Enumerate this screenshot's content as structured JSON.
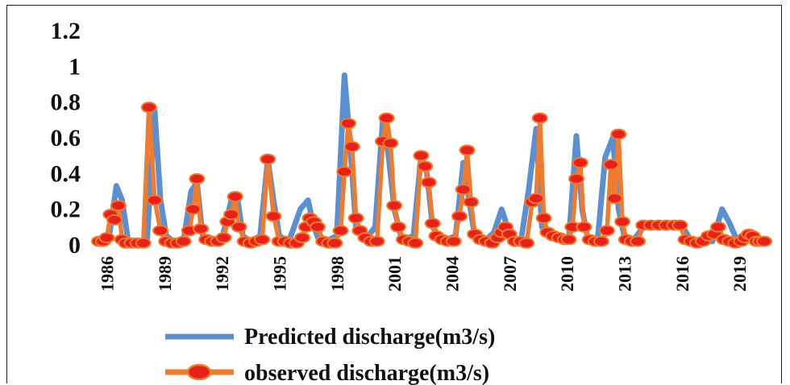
{
  "chart_data": {
    "type": "line",
    "title": "",
    "xlabel": "",
    "ylabel": "",
    "ylim": [
      0,
      1.2
    ],
    "yticks": [
      "0",
      "0.2",
      "0.4",
      "0.6",
      "0.8",
      "1",
      "1.2"
    ],
    "xticks": [
      "1986",
      "1989",
      "1992",
      "1995",
      "1998",
      "2001",
      "2004",
      "2007",
      "2010",
      "2013",
      "2016",
      "2019"
    ],
    "x_range": [
      1985.6,
      2020.3
    ],
    "grid": false,
    "legend_position": "bottom",
    "series": [
      {
        "name": "Predicted discharge(m3/s)",
        "color": "#5b8fd1",
        "marker": "none",
        "points": [
          [
            1985.6,
            0.02
          ],
          [
            1986.1,
            0.03
          ],
          [
            1986.5,
            0.33
          ],
          [
            1986.8,
            0.25
          ],
          [
            1987.1,
            0.03
          ],
          [
            1987.6,
            0.01
          ],
          [
            1988.1,
            0.02
          ],
          [
            1988.5,
            0.75
          ],
          [
            1988.8,
            0.25
          ],
          [
            1989.1,
            0.05
          ],
          [
            1989.5,
            0.02
          ],
          [
            1990.0,
            0.02
          ],
          [
            1990.4,
            0.3
          ],
          [
            1990.7,
            0.35
          ],
          [
            1991.0,
            0.05
          ],
          [
            1991.5,
            0.02
          ],
          [
            1992.0,
            0.03
          ],
          [
            1992.5,
            0.25
          ],
          [
            1992.8,
            0.27
          ],
          [
            1993.1,
            0.05
          ],
          [
            1993.5,
            0.02
          ],
          [
            1994.0,
            0.05
          ],
          [
            1994.4,
            0.48
          ],
          [
            1994.7,
            0.25
          ],
          [
            1995.0,
            0.05
          ],
          [
            1995.5,
            0.02
          ],
          [
            1996.1,
            0.2
          ],
          [
            1996.5,
            0.25
          ],
          [
            1996.8,
            0.1
          ],
          [
            1997.1,
            0.02
          ],
          [
            1997.6,
            0.03
          ],
          [
            1998.0,
            0.05
          ],
          [
            1998.4,
            0.95
          ],
          [
            1998.7,
            0.55
          ],
          [
            1999.0,
            0.1
          ],
          [
            1999.5,
            0.03
          ],
          [
            2000.0,
            0.1
          ],
          [
            2000.4,
            0.7
          ],
          [
            2000.7,
            0.5
          ],
          [
            2001.0,
            0.2
          ],
          [
            2001.4,
            0.03
          ],
          [
            2002.0,
            0.05
          ],
          [
            2002.4,
            0.5
          ],
          [
            2002.7,
            0.4
          ],
          [
            2003.0,
            0.1
          ],
          [
            2003.5,
            0.02
          ],
          [
            2004.2,
            0.05
          ],
          [
            2004.6,
            0.46
          ],
          [
            2004.9,
            0.25
          ],
          [
            2005.2,
            0.05
          ],
          [
            2005.7,
            0.02
          ],
          [
            2006.2,
            0.07
          ],
          [
            2006.6,
            0.2
          ],
          [
            2006.9,
            0.1
          ],
          [
            2007.2,
            0.03
          ],
          [
            2007.6,
            0.02
          ],
          [
            2008.0,
            0.3
          ],
          [
            2008.4,
            0.65
          ],
          [
            2008.7,
            0.1
          ],
          [
            2009.1,
            0.05
          ],
          [
            2009.6,
            0.03
          ],
          [
            2010.1,
            0.02
          ],
          [
            2010.5,
            0.61
          ],
          [
            2010.8,
            0.2
          ],
          [
            2011.1,
            0.03
          ],
          [
            2011.6,
            0.02
          ],
          [
            2012.0,
            0.49
          ],
          [
            2012.4,
            0.6
          ],
          [
            2012.7,
            0.2
          ],
          [
            2013.0,
            0.05
          ],
          [
            2013.5,
            0.03
          ],
          [
            2014.0,
            0.1
          ],
          [
            2014.5,
            0.11
          ],
          [
            2015.0,
            0.1
          ],
          [
            2015.5,
            0.12
          ],
          [
            2016.0,
            0.11
          ],
          [
            2016.5,
            0.02
          ],
          [
            2017.0,
            0.02
          ],
          [
            2017.6,
            0.02
          ],
          [
            2018.1,
            0.2
          ],
          [
            2018.5,
            0.12
          ],
          [
            2018.9,
            0.02
          ],
          [
            2019.3,
            0.02
          ],
          [
            2019.7,
            0.05
          ],
          [
            2020.3,
            0.02
          ]
        ]
      },
      {
        "name": "observed discharge(m3/s)",
        "color": "#ee7b2e",
        "marker": "circle",
        "marker_color": "#e8201b",
        "points": [
          [
            1985.6,
            0.02
          ],
          [
            1985.8,
            0.02
          ],
          [
            1986.0,
            0.04
          ],
          [
            1986.2,
            0.17
          ],
          [
            1986.4,
            0.14
          ],
          [
            1986.6,
            0.22
          ],
          [
            1986.8,
            0.03
          ],
          [
            1987.0,
            0.01
          ],
          [
            1987.3,
            0.01
          ],
          [
            1987.6,
            0.01
          ],
          [
            1987.9,
            0.01
          ],
          [
            1988.2,
            0.77
          ],
          [
            1988.5,
            0.25
          ],
          [
            1988.8,
            0.08
          ],
          [
            1989.1,
            0.02
          ],
          [
            1989.4,
            0.01
          ],
          [
            1989.7,
            0.01
          ],
          [
            1990.0,
            0.02
          ],
          [
            1990.3,
            0.08
          ],
          [
            1990.5,
            0.2
          ],
          [
            1990.7,
            0.37
          ],
          [
            1990.9,
            0.09
          ],
          [
            1991.2,
            0.03
          ],
          [
            1991.5,
            0.02
          ],
          [
            1991.8,
            0.02
          ],
          [
            1992.1,
            0.04
          ],
          [
            1992.3,
            0.13
          ],
          [
            1992.5,
            0.17
          ],
          [
            1992.7,
            0.27
          ],
          [
            1992.9,
            0.1
          ],
          [
            1993.2,
            0.02
          ],
          [
            1993.5,
            0.01
          ],
          [
            1993.8,
            0.02
          ],
          [
            1994.1,
            0.03
          ],
          [
            1994.4,
            0.48
          ],
          [
            1994.7,
            0.16
          ],
          [
            1995.0,
            0.02
          ],
          [
            1995.3,
            0.02
          ],
          [
            1995.6,
            0.01
          ],
          [
            1995.9,
            0.01
          ],
          [
            1996.2,
            0.04
          ],
          [
            1996.4,
            0.1
          ],
          [
            1996.6,
            0.15
          ],
          [
            1996.8,
            0.13
          ],
          [
            1997.0,
            0.1
          ],
          [
            1997.3,
            0.02
          ],
          [
            1997.6,
            0.01
          ],
          [
            1997.9,
            0.01
          ],
          [
            1998.2,
            0.08
          ],
          [
            1998.4,
            0.41
          ],
          [
            1998.6,
            0.68
          ],
          [
            1998.8,
            0.55
          ],
          [
            1999.0,
            0.15
          ],
          [
            1999.2,
            0.08
          ],
          [
            1999.5,
            0.04
          ],
          [
            1999.8,
            0.02
          ],
          [
            2000.1,
            0.02
          ],
          [
            2000.4,
            0.58
          ],
          [
            2000.6,
            0.71
          ],
          [
            2000.8,
            0.57
          ],
          [
            2001.0,
            0.22
          ],
          [
            2001.2,
            0.1
          ],
          [
            2001.5,
            0.03
          ],
          [
            2001.8,
            0.02
          ],
          [
            2002.1,
            0.01
          ],
          [
            2002.4,
            0.5
          ],
          [
            2002.6,
            0.44
          ],
          [
            2002.8,
            0.35
          ],
          [
            2003.0,
            0.12
          ],
          [
            2003.2,
            0.05
          ],
          [
            2003.5,
            0.03
          ],
          [
            2003.8,
            0.02
          ],
          [
            2004.1,
            0.02
          ],
          [
            2004.4,
            0.16
          ],
          [
            2004.6,
            0.31
          ],
          [
            2004.8,
            0.53
          ],
          [
            2005.0,
            0.24
          ],
          [
            2005.2,
            0.06
          ],
          [
            2005.5,
            0.03
          ],
          [
            2005.8,
            0.02
          ],
          [
            2006.1,
            0.01
          ],
          [
            2006.4,
            0.04
          ],
          [
            2006.6,
            0.07
          ],
          [
            2006.8,
            0.1
          ],
          [
            2007.0,
            0.06
          ],
          [
            2007.3,
            0.02
          ],
          [
            2007.6,
            0.02
          ],
          [
            2007.9,
            0.01
          ],
          [
            2008.2,
            0.24
          ],
          [
            2008.4,
            0.26
          ],
          [
            2008.6,
            0.71
          ],
          [
            2008.8,
            0.15
          ],
          [
            2009.0,
            0.07
          ],
          [
            2009.3,
            0.05
          ],
          [
            2009.6,
            0.04
          ],
          [
            2009.9,
            0.03
          ],
          [
            2010.1,
            0.03
          ],
          [
            2010.3,
            0.1
          ],
          [
            2010.5,
            0.37
          ],
          [
            2010.7,
            0.46
          ],
          [
            2010.9,
            0.1
          ],
          [
            2011.2,
            0.03
          ],
          [
            2011.5,
            0.02
          ],
          [
            2011.8,
            0.02
          ],
          [
            2012.1,
            0.08
          ],
          [
            2012.3,
            0.45
          ],
          [
            2012.5,
            0.26
          ],
          [
            2012.7,
            0.62
          ],
          [
            2012.9,
            0.13
          ],
          [
            2013.1,
            0.03
          ],
          [
            2013.4,
            0.02
          ],
          [
            2013.7,
            0.02
          ],
          [
            2014.0,
            0.11
          ],
          [
            2014.4,
            0.11
          ],
          [
            2014.8,
            0.11
          ],
          [
            2015.2,
            0.11
          ],
          [
            2015.6,
            0.11
          ],
          [
            2015.9,
            0.11
          ],
          [
            2016.2,
            0.03
          ],
          [
            2016.5,
            0.02
          ],
          [
            2016.8,
            0.01
          ],
          [
            2017.1,
            0.02
          ],
          [
            2017.4,
            0.05
          ],
          [
            2017.7,
            0.06
          ],
          [
            2017.9,
            0.1
          ],
          [
            2018.2,
            0.03
          ],
          [
            2018.5,
            0.02
          ],
          [
            2018.8,
            0.01
          ],
          [
            2019.1,
            0.02
          ],
          [
            2019.3,
            0.04
          ],
          [
            2019.5,
            0.06
          ],
          [
            2019.7,
            0.05
          ],
          [
            2019.9,
            0.02
          ],
          [
            2020.1,
            0.02
          ],
          [
            2020.3,
            0.02
          ]
        ]
      }
    ]
  }
}
